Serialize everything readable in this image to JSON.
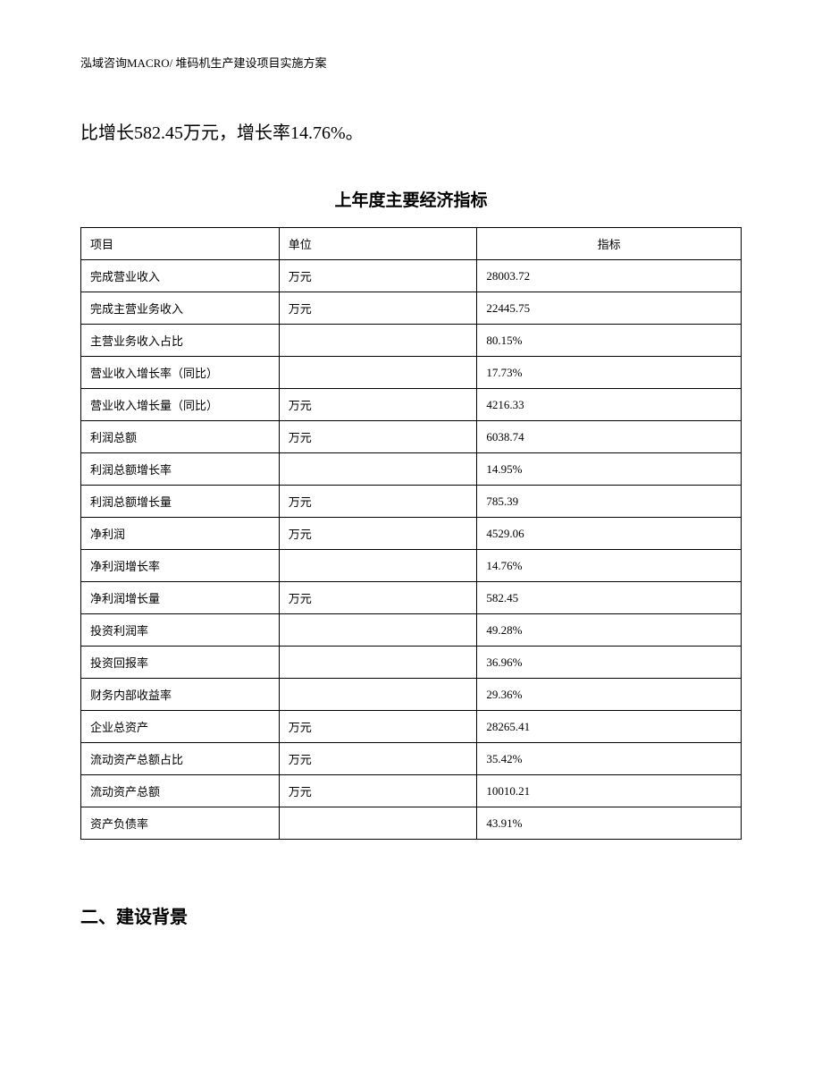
{
  "header": {
    "text": "泓域咨询MACRO/ 堆码机生产建设项目实施方案"
  },
  "body_text": "比增长582.45万元，增长率14.76%。",
  "table": {
    "title": "上年度主要经济指标",
    "headers": {
      "project": "项目",
      "unit": "单位",
      "value": "指标"
    },
    "rows": [
      {
        "project": "完成营业收入",
        "unit": "万元",
        "value": "28003.72"
      },
      {
        "project": "完成主营业务收入",
        "unit": "万元",
        "value": "22445.75"
      },
      {
        "project": "主营业务收入占比",
        "unit": "",
        "value": "80.15%"
      },
      {
        "project": "营业收入增长率（同比）",
        "unit": "",
        "value": "17.73%"
      },
      {
        "project": "营业收入增长量（同比）",
        "unit": "万元",
        "value": "4216.33"
      },
      {
        "project": "利润总额",
        "unit": "万元",
        "value": "6038.74"
      },
      {
        "project": "利润总额增长率",
        "unit": "",
        "value": "14.95%"
      },
      {
        "project": "利润总额增长量",
        "unit": "万元",
        "value": "785.39"
      },
      {
        "project": "净利润",
        "unit": "万元",
        "value": "4529.06"
      },
      {
        "project": "净利润增长率",
        "unit": "",
        "value": "14.76%"
      },
      {
        "project": "净利润增长量",
        "unit": "万元",
        "value": "582.45"
      },
      {
        "project": "投资利润率",
        "unit": "",
        "value": "49.28%"
      },
      {
        "project": "投资回报率",
        "unit": "",
        "value": "36.96%"
      },
      {
        "project": "财务内部收益率",
        "unit": "",
        "value": "29.36%"
      },
      {
        "project": "企业总资产",
        "unit": "万元",
        "value": "28265.41"
      },
      {
        "project": "流动资产总额占比",
        "unit": "万元",
        "value": "35.42%"
      },
      {
        "project": "流动资产总额",
        "unit": "万元",
        "value": "10010.21"
      },
      {
        "project": "资产负债率",
        "unit": "",
        "value": "43.91%"
      }
    ]
  },
  "section_heading": "二、建设背景"
}
